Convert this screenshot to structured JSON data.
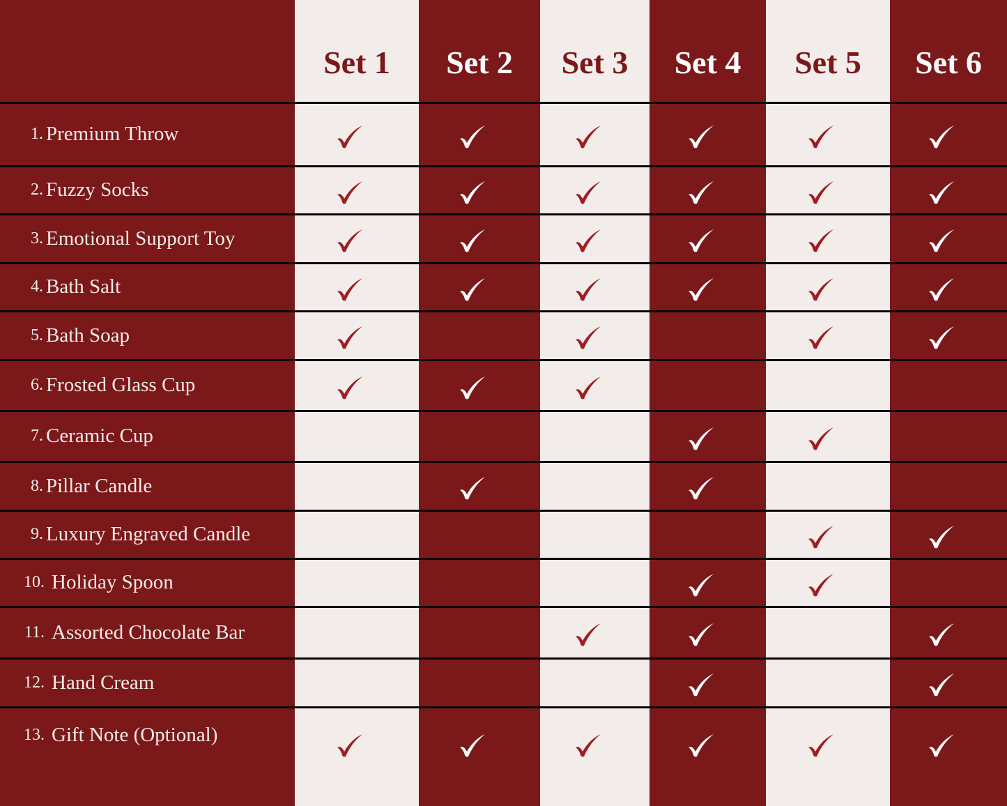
{
  "colors": {
    "dark": "#7b181a",
    "light": "#f2ecea",
    "divider": "#0d0606",
    "check_on_light": "#9c1f24",
    "check_on_dark": "#ffffff"
  },
  "check_icon": "checkmark-icon",
  "sets": [
    "Set 1",
    "Set 2",
    "Set 3",
    "Set 4",
    "Set 5",
    "Set 6"
  ],
  "items": [
    {
      "num": "1.",
      "name": "Premium Throw",
      "included": [
        true,
        true,
        true,
        true,
        true,
        true
      ]
    },
    {
      "num": "2.",
      "name": "Fuzzy Socks",
      "included": [
        true,
        true,
        true,
        true,
        true,
        true
      ]
    },
    {
      "num": "3.",
      "name": "Emotional Support Toy",
      "included": [
        true,
        true,
        true,
        true,
        true,
        true
      ]
    },
    {
      "num": "4.",
      "name": "Bath Salt",
      "included": [
        true,
        true,
        true,
        true,
        true,
        true
      ]
    },
    {
      "num": "5.",
      "name": "Bath Soap",
      "included": [
        true,
        false,
        true,
        false,
        true,
        true
      ]
    },
    {
      "num": "6.",
      "name": "Frosted Glass Cup",
      "included": [
        true,
        true,
        true,
        false,
        false,
        false
      ]
    },
    {
      "num": "7.",
      "name": "Ceramic Cup",
      "included": [
        false,
        false,
        false,
        true,
        true,
        false
      ]
    },
    {
      "num": "8.",
      "name": "Pillar Candle",
      "included": [
        false,
        true,
        false,
        true,
        false,
        false
      ]
    },
    {
      "num": "9.",
      "name": "Luxury Engraved Candle",
      "included": [
        false,
        false,
        false,
        false,
        true,
        true
      ]
    },
    {
      "num": "10.",
      "name": "Holiday Spoon",
      "included": [
        false,
        false,
        false,
        true,
        true,
        false
      ]
    },
    {
      "num": "11.",
      "name": "Assorted Chocolate Bar",
      "included": [
        false,
        false,
        true,
        true,
        false,
        true
      ]
    },
    {
      "num": "12.",
      "name": "Hand Cream",
      "included": [
        false,
        false,
        false,
        true,
        false,
        true
      ]
    },
    {
      "num": "13.",
      "name": "Gift Note (Optional)",
      "included": [
        true,
        true,
        true,
        true,
        true,
        true
      ]
    }
  ]
}
